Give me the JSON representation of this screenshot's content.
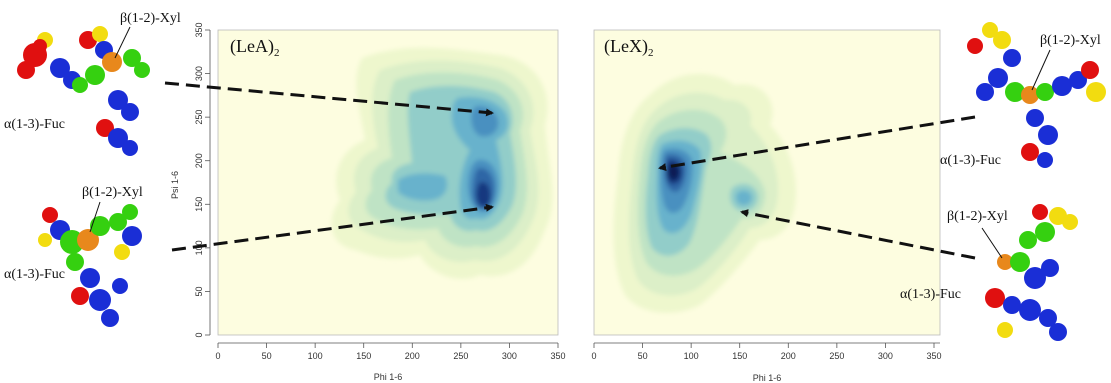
{
  "panels": [
    {
      "title": "(LeA)",
      "title_sub": "2",
      "xlabel": "Phi 1-6",
      "ylabel": "Psi 1-6",
      "xticks": [
        "0",
        "50",
        "100",
        "150",
        "200",
        "250",
        "300",
        "350"
      ],
      "yticks": [
        "0",
        "50",
        "100",
        "150",
        "200",
        "250",
        "300",
        "350"
      ]
    },
    {
      "title": "(LeX)",
      "title_sub": "2",
      "xlabel": "Phi 1-6",
      "xticks": [
        "0",
        "50",
        "100",
        "150",
        "200",
        "250",
        "300",
        "350"
      ]
    }
  ],
  "labels": {
    "xyl": "β(1-2)-Xyl",
    "fuc": "α(1-3)-Fuc"
  },
  "colors": {
    "background": "#fdfde0",
    "contour_levels": [
      "#f1f8cf",
      "#dff0c9",
      "#c2e4c6",
      "#97d0c9",
      "#6db6cc",
      "#4b92c0",
      "#3068a8",
      "#183a84",
      "#0b1f55"
    ],
    "mol_red": "#e01010",
    "mol_blue": "#1a2ed6",
    "mol_green": "#35d010",
    "mol_yellow": "#f2dc10",
    "mol_orange": "#e8881c"
  }
}
